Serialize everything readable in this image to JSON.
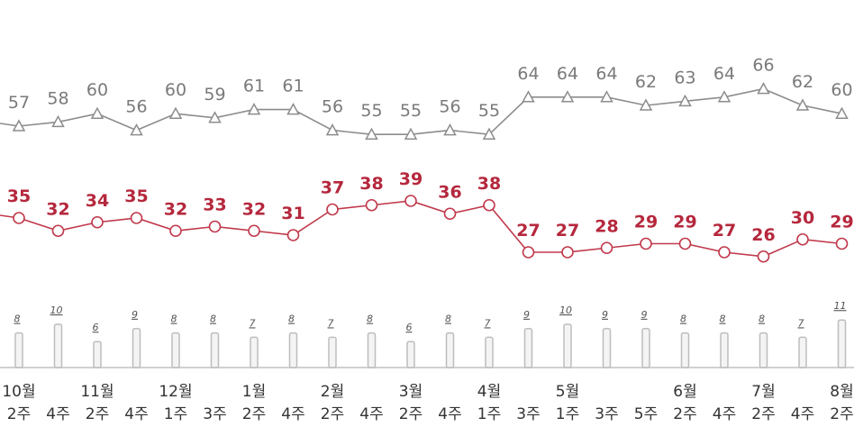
{
  "chart_data": {
    "type": "line",
    "title": "",
    "categories": [
      {
        "month": "10월",
        "week": "2주"
      },
      {
        "month": "",
        "week": "4주"
      },
      {
        "month": "11월",
        "week": "2주"
      },
      {
        "month": "",
        "week": "4주"
      },
      {
        "month": "12월",
        "week": "1주"
      },
      {
        "month": "",
        "week": "3주"
      },
      {
        "month": "1월",
        "week": "2주"
      },
      {
        "month": "",
        "week": "4주"
      },
      {
        "month": "2월",
        "week": "2주"
      },
      {
        "month": "",
        "week": "4주"
      },
      {
        "month": "3월",
        "week": "2주"
      },
      {
        "month": "",
        "week": "4주"
      },
      {
        "month": "4월",
        "week": "1주"
      },
      {
        "month": "",
        "week": "3주"
      },
      {
        "month": "5월",
        "week": "1주"
      },
      {
        "month": "",
        "week": "3주"
      },
      {
        "month": "",
        "week": "5주"
      },
      {
        "month": "6월",
        "week": "2주"
      },
      {
        "month": "",
        "week": "4주"
      },
      {
        "month": "7월",
        "week": "2주"
      },
      {
        "month": "",
        "week": "4주"
      },
      {
        "month": "8월",
        "week": "2주"
      }
    ],
    "series": [
      {
        "name": "gray-triangle",
        "type": "line",
        "marker": "triangle",
        "color": "#8c8c8c",
        "label_color": "#7a7a7a",
        "values": [
          57,
          58,
          60,
          56,
          60,
          59,
          61,
          61,
          56,
          55,
          55,
          56,
          55,
          64,
          64,
          64,
          62,
          63,
          64,
          66,
          62,
          60
        ]
      },
      {
        "name": "red-circle",
        "type": "line",
        "marker": "circle",
        "color": "#c0394b",
        "label_color": "#b5283d",
        "values": [
          35,
          32,
          34,
          35,
          32,
          33,
          32,
          31,
          37,
          38,
          39,
          36,
          38,
          27,
          27,
          28,
          29,
          29,
          27,
          26,
          30,
          29
        ]
      },
      {
        "name": "gray-bar",
        "type": "bar",
        "color": "#d9d9d9",
        "values": [
          8,
          10,
          6,
          9,
          8,
          8,
          7,
          8,
          7,
          8,
          6,
          8,
          7,
          9,
          10,
          9,
          9,
          8,
          8,
          8,
          7,
          11
        ]
      }
    ],
    "xlabel": "",
    "ylabel": "",
    "grid": false,
    "legend": "none"
  }
}
